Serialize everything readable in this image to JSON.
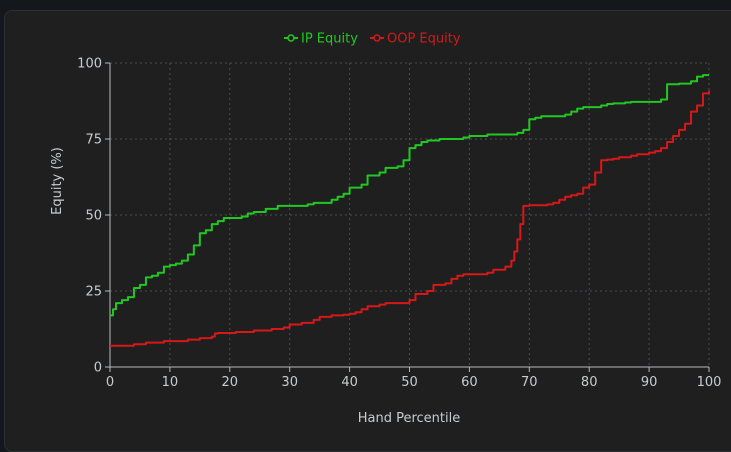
{
  "chart_data": {
    "type": "line",
    "xlabel": "Hand Percentile",
    "ylabel": "Equity (%)",
    "xlim": [
      0,
      100
    ],
    "ylim": [
      0,
      100
    ],
    "x_ticks": [
      0,
      10,
      20,
      30,
      40,
      50,
      60,
      70,
      80,
      90,
      100
    ],
    "y_ticks": [
      0,
      25,
      50,
      75,
      100
    ],
    "grid": true,
    "legend_position": "top-center",
    "series": [
      {
        "name": "IP Equity",
        "color": "#22c722",
        "step": true,
        "points": [
          [
            0,
            17
          ],
          [
            0.5,
            19
          ],
          [
            1,
            21
          ],
          [
            2,
            22
          ],
          [
            3,
            23
          ],
          [
            4,
            26
          ],
          [
            5,
            27
          ],
          [
            6,
            29.5
          ],
          [
            7,
            30
          ],
          [
            8,
            31
          ],
          [
            9,
            33
          ],
          [
            10,
            33.5
          ],
          [
            11,
            34
          ],
          [
            12,
            35
          ],
          [
            13,
            37
          ],
          [
            14,
            40
          ],
          [
            15,
            44
          ],
          [
            16,
            45
          ],
          [
            17,
            47
          ],
          [
            18,
            48
          ],
          [
            19,
            49
          ],
          [
            22,
            49.5
          ],
          [
            23,
            50.5
          ],
          [
            24,
            51
          ],
          [
            26,
            52
          ],
          [
            27,
            52
          ],
          [
            28,
            53
          ],
          [
            33,
            53.5
          ],
          [
            34,
            54
          ],
          [
            37,
            55
          ],
          [
            38,
            56
          ],
          [
            39,
            57
          ],
          [
            40,
            59
          ],
          [
            42,
            60
          ],
          [
            43,
            63
          ],
          [
            45,
            64
          ],
          [
            46,
            65.5
          ],
          [
            48,
            66
          ],
          [
            49,
            68
          ],
          [
            50,
            72
          ],
          [
            51,
            73
          ],
          [
            52,
            74
          ],
          [
            53,
            74.5
          ],
          [
            55,
            75
          ],
          [
            59,
            75.5
          ],
          [
            60,
            76
          ],
          [
            63,
            76.5
          ],
          [
            68,
            77
          ],
          [
            69,
            78
          ],
          [
            70,
            81.5
          ],
          [
            71,
            82
          ],
          [
            72,
            82.5
          ],
          [
            76,
            83
          ],
          [
            77,
            84
          ],
          [
            78,
            85
          ],
          [
            79,
            85.5
          ],
          [
            82,
            86
          ],
          [
            83,
            86.5
          ],
          [
            84,
            86.7
          ],
          [
            86,
            87
          ],
          [
            87,
            87.2
          ],
          [
            92,
            88
          ],
          [
            93,
            93
          ],
          [
            95,
            93.2
          ],
          [
            97,
            94
          ],
          [
            98,
            95.5
          ],
          [
            99,
            96
          ],
          [
            100,
            96
          ]
        ]
      },
      {
        "name": "OOP Equity",
        "color": "#d81818",
        "step": true,
        "points": [
          [
            0,
            7
          ],
          [
            4,
            7.5
          ],
          [
            6,
            8
          ],
          [
            9,
            8.5
          ],
          [
            13,
            9
          ],
          [
            15,
            9.5
          ],
          [
            17,
            10
          ],
          [
            17.5,
            11
          ],
          [
            18,
            11.2
          ],
          [
            21,
            11.5
          ],
          [
            24,
            12
          ],
          [
            27,
            12.5
          ],
          [
            29,
            13
          ],
          [
            30,
            14
          ],
          [
            32,
            14.5
          ],
          [
            34,
            15.5
          ],
          [
            35,
            16.5
          ],
          [
            37,
            17
          ],
          [
            39,
            17.2
          ],
          [
            40,
            17.5
          ],
          [
            41,
            18
          ],
          [
            42,
            19
          ],
          [
            43,
            20
          ],
          [
            45,
            20.5
          ],
          [
            46,
            21
          ],
          [
            50,
            22
          ],
          [
            51,
            24
          ],
          [
            53,
            25
          ],
          [
            54,
            27
          ],
          [
            56,
            27.5
          ],
          [
            57,
            29
          ],
          [
            58,
            30
          ],
          [
            59,
            30.5
          ],
          [
            63,
            31
          ],
          [
            64,
            32
          ],
          [
            66,
            33
          ],
          [
            67,
            35
          ],
          [
            67.5,
            38
          ],
          [
            68,
            42
          ],
          [
            68.5,
            47
          ],
          [
            69,
            53
          ],
          [
            70,
            53.2
          ],
          [
            73,
            53.5
          ],
          [
            74,
            54
          ],
          [
            75,
            55
          ],
          [
            76,
            56
          ],
          [
            77,
            56.5
          ],
          [
            78,
            57
          ],
          [
            79,
            59
          ],
          [
            80,
            60
          ],
          [
            81,
            64
          ],
          [
            82,
            68
          ],
          [
            83,
            68.2
          ],
          [
            84,
            68.5
          ],
          [
            85,
            69
          ],
          [
            87,
            69.5
          ],
          [
            88,
            70
          ],
          [
            90,
            70.5
          ],
          [
            91,
            71
          ],
          [
            92,
            72
          ],
          [
            93,
            74
          ],
          [
            94,
            76
          ],
          [
            95,
            78
          ],
          [
            96,
            80
          ],
          [
            97,
            84
          ],
          [
            98,
            86
          ],
          [
            99,
            90
          ],
          [
            100,
            91
          ]
        ]
      }
    ]
  }
}
